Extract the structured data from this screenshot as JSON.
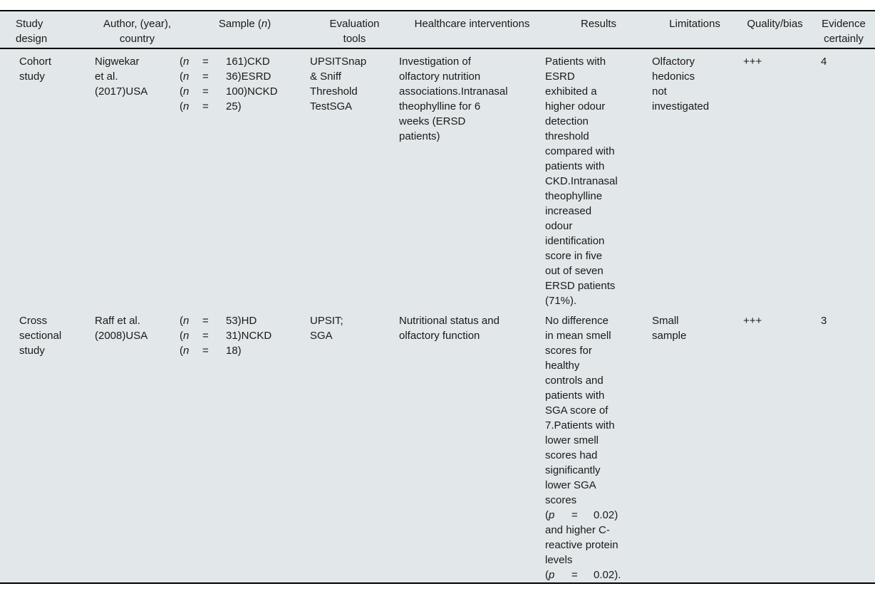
{
  "colors": {
    "table_background": "#e2e7e9",
    "rule_color": "#000000",
    "text_color": "#1a1a1a"
  },
  "table": {
    "header": {
      "study_design": "Study\ndesign",
      "author": "Author, (year),\ncountry",
      "sample_prefix": "Sample (",
      "sample_var": "n",
      "sample_suffix": ")",
      "evaluation_tools": "Evaluation\ntools",
      "interventions": "Healthcare interventions",
      "results": "Results",
      "limitations": "Limitations",
      "quality_bias": "Quality/bias",
      "evidence_certainty": "Evidence\ncertainly"
    },
    "rows": [
      {
        "study_design": [
          "Cohort",
          "study"
        ],
        "author": [
          "Nigwekar",
          "et al.",
          "(2017)USA"
        ],
        "sample_lines": [
          {
            "open": "(",
            "letter": "n",
            "eq": "=",
            "value": "161)CKD"
          },
          {
            "open": "(",
            "letter": "n",
            "eq": "=",
            "value": "36)ESRD"
          },
          {
            "open": "(",
            "letter": "n",
            "eq": "=",
            "value": "100)NCKD"
          },
          {
            "open": "(",
            "letter": "n",
            "eq": "=",
            "value": "25)"
          }
        ],
        "evaluation_tools": [
          "UPSITSnap",
          "& Sniff",
          "Threshold",
          "TestSGA"
        ],
        "interventions": [
          "Investigation of",
          "olfactory nutrition",
          "associations.Intranasal",
          "theophylline for 6",
          "weeks (ERSD",
          "patients)"
        ],
        "results": [
          "Patients with",
          "ESRD",
          "exhibited a",
          "higher odour",
          "detection",
          "threshold",
          "compared with",
          "patients with",
          "CKD.Intranasal",
          "theophylline",
          "increased",
          "odour",
          "identification",
          "score in five",
          "out of seven",
          "ERSD patients",
          "(71%)."
        ],
        "limitations": [
          "Olfactory",
          "hedonics",
          "not",
          "investigated"
        ],
        "quality_bias": "+++",
        "evidence_certainty": "4"
      },
      {
        "study_design": [
          "Cross",
          "sectional",
          "study"
        ],
        "author": [
          "Raff et al.",
          "(2008)USA"
        ],
        "sample_lines": [
          {
            "open": "(",
            "letter": "n",
            "eq": "=",
            "value": "53)HD"
          },
          {
            "open": "(",
            "letter": "n",
            "eq": "=",
            "value": "31)NCKD"
          },
          {
            "open": "(",
            "letter": "n",
            "eq": "=",
            "value": "18)"
          }
        ],
        "evaluation_tools": [
          "UPSIT;",
          "SGA"
        ],
        "interventions": [
          "Nutritional status and",
          "olfactory function"
        ],
        "results_part1": [
          "No difference",
          "in mean smell",
          "scores for",
          "healthy",
          "controls and",
          "patients with",
          "SGA score of",
          "7.Patients with",
          "lower smell",
          "scores had",
          "significantly",
          "lower SGA",
          "scores"
        ],
        "p_line1": {
          "open": "(",
          "letter": "p",
          "eq": "=",
          "value": "0.02)"
        },
        "results_part2": [
          "and higher C-",
          "reactive protein",
          "levels"
        ],
        "p_line2": {
          "open": "(",
          "letter": "p",
          "eq": "=",
          "value": "0.02)."
        },
        "limitations": [
          "Small",
          "sample"
        ],
        "quality_bias": "+++",
        "evidence_certainty": "3"
      }
    ]
  }
}
